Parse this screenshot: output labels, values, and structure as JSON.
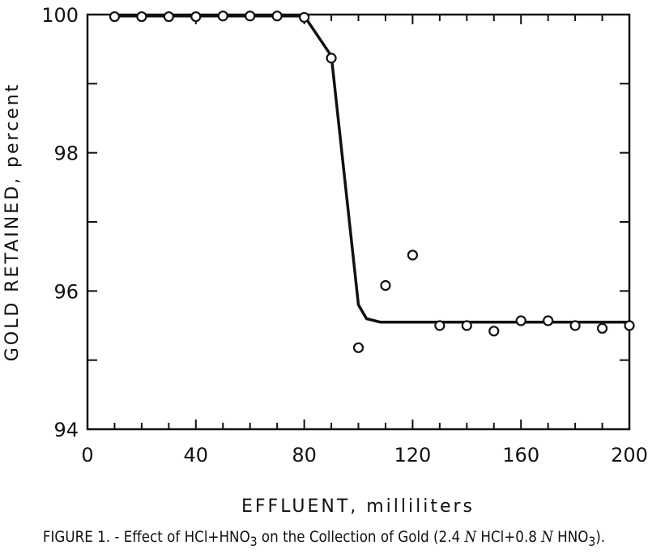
{
  "chart_data": {
    "type": "scatter",
    "xlabel": "EFFLUENT, milliliters",
    "ylabel": "GOLD RETAINED, percent",
    "xlim": [
      0,
      200
    ],
    "ylim": [
      94,
      100
    ],
    "x_ticks": [
      "0",
      "40",
      "80",
      "120",
      "160",
      "200"
    ],
    "y_ticks": [
      "94",
      "96",
      "98",
      "100"
    ],
    "grid": false,
    "series": [
      {
        "kind": "points",
        "marker": "open-circle",
        "points": [
          {
            "x": 10,
            "y": 99.97
          },
          {
            "x": 20,
            "y": 99.97
          },
          {
            "x": 30,
            "y": 99.97
          },
          {
            "x": 40,
            "y": 99.97
          },
          {
            "x": 50,
            "y": 99.98
          },
          {
            "x": 60,
            "y": 99.98
          },
          {
            "x": 70,
            "y": 99.98
          },
          {
            "x": 80,
            "y": 99.96
          },
          {
            "x": 90,
            "y": 99.37
          },
          {
            "x": 100,
            "y": 95.18
          },
          {
            "x": 110,
            "y": 96.08
          },
          {
            "x": 120,
            "y": 96.52
          },
          {
            "x": 130,
            "y": 95.5
          },
          {
            "x": 140,
            "y": 95.5
          },
          {
            "x": 150,
            "y": 95.42
          },
          {
            "x": 160,
            "y": 95.57
          },
          {
            "x": 170,
            "y": 95.57
          },
          {
            "x": 180,
            "y": 95.5
          },
          {
            "x": 190,
            "y": 95.46
          },
          {
            "x": 200,
            "y": 95.5
          }
        ]
      },
      {
        "kind": "line",
        "points": [
          {
            "x": 10,
            "y": 99.98
          },
          {
            "x": 80,
            "y": 99.98
          },
          {
            "x": 90,
            "y": 99.4
          },
          {
            "x": 100,
            "y": 95.8
          },
          {
            "x": 103,
            "y": 95.6
          },
          {
            "x": 108,
            "y": 95.55
          },
          {
            "x": 200,
            "y": 95.55
          }
        ]
      }
    ],
    "caption": {
      "prefix": "FIGURE 1. - Effect of HCl+HNO",
      "sub1": "3",
      "mid": " on the Collection of Gold (2.4 ",
      "n1": "N",
      "mid2": " HCl+0.8 ",
      "n2": "N",
      "mid3": " HNO",
      "sub2": "3",
      "suffix": ")."
    }
  }
}
